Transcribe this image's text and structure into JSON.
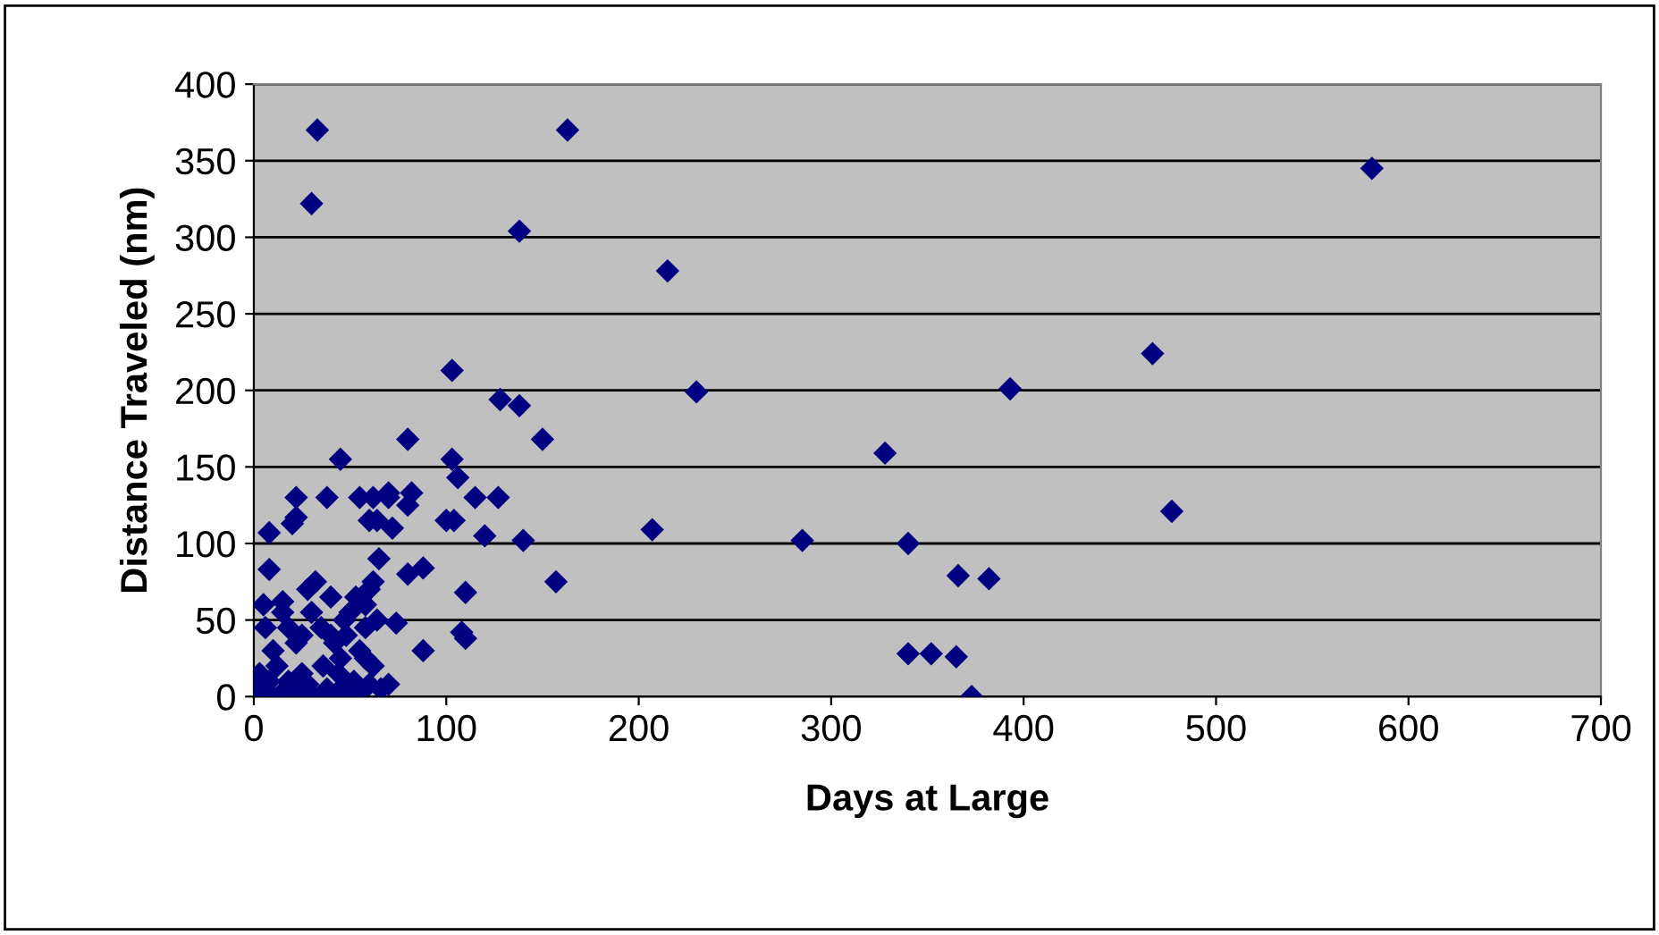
{
  "chart_data": {
    "type": "scatter",
    "xlabel": "Days at Large",
    "ylabel": "Distance Traveled (nm)",
    "xlim": [
      0,
      700
    ],
    "xticks": [
      0,
      100,
      200,
      300,
      400,
      500,
      600,
      700
    ],
    "ylim": [
      0,
      400
    ],
    "yticks": [
      0,
      50,
      100,
      150,
      200,
      250,
      300,
      350,
      400
    ],
    "grid": "y",
    "legend": false,
    "marker": "diamond",
    "series": [
      {
        "color": "#000080",
        "x": [
          33,
          30,
          163,
          138,
          215,
          230,
          103,
          128,
          138,
          150,
          80,
          103,
          106,
          45,
          328,
          393,
          467,
          477,
          581,
          285,
          340,
          207,
          140,
          157,
          366,
          382,
          340,
          352,
          365,
          373,
          110,
          108,
          110,
          100,
          104,
          115,
          120,
          127,
          88,
          88,
          80,
          80,
          82,
          70,
          70,
          62,
          55,
          60,
          64,
          38,
          22,
          20,
          22,
          8,
          5,
          8,
          15,
          15,
          72,
          74,
          65,
          70,
          66,
          2,
          8,
          12,
          3,
          6,
          10,
          18,
          25,
          28,
          32,
          35,
          40,
          42,
          45,
          48,
          50,
          52,
          55,
          58,
          60,
          62,
          38,
          30,
          25,
          20,
          15,
          45,
          55,
          60,
          35,
          42,
          50,
          28,
          22,
          40,
          44,
          58,
          62,
          47,
          36,
          30,
          18,
          10,
          25,
          58,
          64,
          53
        ],
        "values": [
          370,
          322,
          370,
          304,
          278,
          199,
          213,
          194,
          190,
          168,
          168,
          155,
          143,
          155,
          159,
          201,
          224,
          121,
          345,
          102,
          100,
          109,
          102,
          75,
          79,
          77,
          28,
          28,
          26,
          0,
          68,
          42,
          38,
          115,
          115,
          130,
          105,
          130,
          30,
          84,
          80,
          125,
          133,
          130,
          133,
          130,
          130,
          115,
          115,
          130,
          130,
          113,
          117,
          107,
          60,
          83,
          55,
          62,
          110,
          48,
          90,
          8,
          5,
          5,
          10,
          20,
          15,
          45,
          30,
          10,
          40,
          70,
          75,
          45,
          65,
          35,
          25,
          40,
          55,
          10,
          30,
          60,
          70,
          20,
          5,
          2,
          15,
          5,
          3,
          5,
          3,
          8,
          0,
          0,
          0,
          8,
          35,
          40,
          15,
          45,
          75,
          50,
          20,
          55,
          45,
          0,
          0,
          25,
          50,
          65
        ]
      }
    ]
  }
}
